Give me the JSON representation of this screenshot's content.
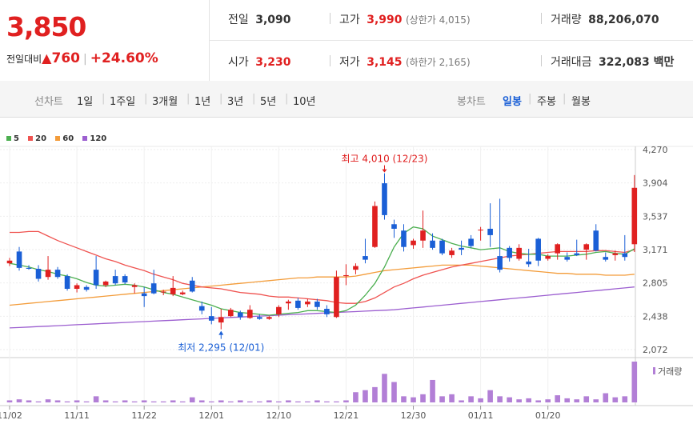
{
  "summary": {
    "price": "3,850",
    "change_label": "전일대비",
    "change_arrow": "▲",
    "change_amount": "760",
    "change_pct": "+24.60%"
  },
  "stats": {
    "prev_close_label": "전일",
    "prev_close": "3,090",
    "high_label": "고가",
    "high": "3,990",
    "upper_limit": "(상한가 4,015)",
    "volume_label": "거래량",
    "volume": "88,206,070",
    "open_label": "시가",
    "open": "3,230",
    "low_label": "저가",
    "low": "3,145",
    "lower_limit": "(하한가 2,165)",
    "trade_value_label": "거래대금",
    "trade_value": "322,083 백만"
  },
  "period_bar": {
    "line_chart_label": "선차트",
    "ranges": [
      "1일",
      "1주일",
      "3개월",
      "1년",
      "3년",
      "5년",
      "10년"
    ],
    "candle_label": "봉차트",
    "candle_options": [
      "일봉",
      "주봉",
      "월봉"
    ],
    "candle_selected": "일봉"
  },
  "colors": {
    "up": "#e02020",
    "down": "#1a5fd6",
    "ma5": "#4caf50",
    "ma20": "#ef5350",
    "ma60": "#f39c3a",
    "ma120": "#9c5fd0"
  },
  "chart_data": {
    "type": "candlestick",
    "legend": [
      {
        "name": "5",
        "color": "#4caf50"
      },
      {
        "name": "20",
        "color": "#ef5350"
      },
      {
        "name": "60",
        "color": "#f39c3a"
      },
      {
        "name": "120",
        "color": "#9c5fd0"
      }
    ],
    "y_ticks": [
      "4,270",
      "3,904",
      "3,537",
      "3,171",
      "2,805",
      "2,438",
      "2,072"
    ],
    "ylim": [
      2072,
      4270
    ],
    "x_ticks": [
      {
        "label": "11/02",
        "index": 0
      },
      {
        "label": "11/11",
        "index": 7
      },
      {
        "label": "11/22",
        "index": 14
      },
      {
        "label": "12/01",
        "index": 21
      },
      {
        "label": "12/10",
        "index": 28
      },
      {
        "label": "12/21",
        "index": 35
      },
      {
        "label": "12/30",
        "index": 42
      },
      {
        "label": "01/11",
        "index": 49
      },
      {
        "label": "01/20",
        "index": 56
      }
    ],
    "candles": [
      {
        "o": 3020,
        "h": 3080,
        "l": 2990,
        "c": 3050
      },
      {
        "o": 3150,
        "h": 3200,
        "l": 2940,
        "c": 2970
      },
      {
        "o": 2970,
        "h": 3000,
        "l": 2950,
        "c": 2960
      },
      {
        "o": 2960,
        "h": 3000,
        "l": 2820,
        "c": 2850
      },
      {
        "o": 2870,
        "h": 3100,
        "l": 2840,
        "c": 2950
      },
      {
        "o": 2950,
        "h": 2980,
        "l": 2850,
        "c": 2870
      },
      {
        "o": 2880,
        "h": 2900,
        "l": 2720,
        "c": 2740
      },
      {
        "o": 2740,
        "h": 2800,
        "l": 2700,
        "c": 2780
      },
      {
        "o": 2760,
        "h": 2780,
        "l": 2710,
        "c": 2730
      },
      {
        "o": 2950,
        "h": 3100,
        "l": 2740,
        "c": 2780
      },
      {
        "o": 2780,
        "h": 2830,
        "l": 2760,
        "c": 2820
      },
      {
        "o": 2880,
        "h": 2950,
        "l": 2780,
        "c": 2800
      },
      {
        "o": 2880,
        "h": 2900,
        "l": 2790,
        "c": 2810
      },
      {
        "o": 2760,
        "h": 2800,
        "l": 2690,
        "c": 2780
      },
      {
        "o": 2690,
        "h": 2760,
        "l": 2540,
        "c": 2660
      },
      {
        "o": 2800,
        "h": 2950,
        "l": 2680,
        "c": 2690
      },
      {
        "o": 2700,
        "h": 2730,
        "l": 2670,
        "c": 2710
      },
      {
        "o": 2680,
        "h": 2880,
        "l": 2660,
        "c": 2750
      },
      {
        "o": 2680,
        "h": 2720,
        "l": 2670,
        "c": 2700
      },
      {
        "o": 2830,
        "h": 2870,
        "l": 2700,
        "c": 2710
      },
      {
        "o": 2550,
        "h": 2600,
        "l": 2460,
        "c": 2500
      },
      {
        "o": 2440,
        "h": 2540,
        "l": 2350,
        "c": 2390
      },
      {
        "o": 2370,
        "h": 2520,
        "l": 2295,
        "c": 2430
      },
      {
        "o": 2440,
        "h": 2530,
        "l": 2430,
        "c": 2510
      },
      {
        "o": 2480,
        "h": 2500,
        "l": 2400,
        "c": 2430
      },
      {
        "o": 2420,
        "h": 2560,
        "l": 2410,
        "c": 2510
      },
      {
        "o": 2430,
        "h": 2460,
        "l": 2400,
        "c": 2410
      },
      {
        "o": 2410,
        "h": 2440,
        "l": 2400,
        "c": 2430
      },
      {
        "o": 2460,
        "h": 2560,
        "l": 2430,
        "c": 2540
      },
      {
        "o": 2580,
        "h": 2620,
        "l": 2510,
        "c": 2600
      },
      {
        "o": 2610,
        "h": 2640,
        "l": 2510,
        "c": 2530
      },
      {
        "o": 2570,
        "h": 2630,
        "l": 2540,
        "c": 2600
      },
      {
        "o": 2600,
        "h": 2630,
        "l": 2510,
        "c": 2540
      },
      {
        "o": 2520,
        "h": 2560,
        "l": 2430,
        "c": 2460
      },
      {
        "o": 2430,
        "h": 2940,
        "l": 2420,
        "c": 2870
      },
      {
        "o": 2880,
        "h": 3010,
        "l": 2780,
        "c": 2890
      },
      {
        "o": 2950,
        "h": 3020,
        "l": 2900,
        "c": 2990
      },
      {
        "o": 3100,
        "h": 3290,
        "l": 3020,
        "c": 3060
      },
      {
        "o": 3200,
        "h": 3700,
        "l": 3190,
        "c": 3650
      },
      {
        "o": 3900,
        "h": 4010,
        "l": 3500,
        "c": 3550
      },
      {
        "o": 3450,
        "h": 3500,
        "l": 3300,
        "c": 3400
      },
      {
        "o": 3380,
        "h": 3450,
        "l": 3150,
        "c": 3200
      },
      {
        "o": 3220,
        "h": 3290,
        "l": 3180,
        "c": 3270
      },
      {
        "o": 3270,
        "h": 3600,
        "l": 3190,
        "c": 3380
      },
      {
        "o": 3270,
        "h": 3350,
        "l": 3170,
        "c": 3190
      },
      {
        "o": 3270,
        "h": 3290,
        "l": 3110,
        "c": 3130
      },
      {
        "o": 3110,
        "h": 3190,
        "l": 3080,
        "c": 3160
      },
      {
        "o": 3190,
        "h": 3270,
        "l": 3110,
        "c": 3170
      },
      {
        "o": 3290,
        "h": 3330,
        "l": 3190,
        "c": 3210
      },
      {
        "o": 3390,
        "h": 3420,
        "l": 3270,
        "c": 3390
      },
      {
        "o": 3400,
        "h": 3680,
        "l": 3200,
        "c": 3330
      },
      {
        "o": 3100,
        "h": 3730,
        "l": 2920,
        "c": 2950
      },
      {
        "o": 3190,
        "h": 3210,
        "l": 3040,
        "c": 3080
      },
      {
        "o": 3070,
        "h": 3230,
        "l": 3050,
        "c": 3190
      },
      {
        "o": 3040,
        "h": 3180,
        "l": 2980,
        "c": 3010
      },
      {
        "o": 3290,
        "h": 3300,
        "l": 2990,
        "c": 3050
      },
      {
        "o": 3070,
        "h": 3120,
        "l": 3050,
        "c": 3100
      },
      {
        "o": 3130,
        "h": 3240,
        "l": 3060,
        "c": 3230
      },
      {
        "o": 3090,
        "h": 3140,
        "l": 3040,
        "c": 3060
      },
      {
        "o": 3130,
        "h": 3280,
        "l": 3100,
        "c": 3110
      },
      {
        "o": 3170,
        "h": 3240,
        "l": 3060,
        "c": 3230
      },
      {
        "o": 3380,
        "h": 3450,
        "l": 3150,
        "c": 3160
      },
      {
        "o": 3090,
        "h": 3140,
        "l": 3040,
        "c": 3060
      },
      {
        "o": 3110,
        "h": 3160,
        "l": 3050,
        "c": 3130
      },
      {
        "o": 3130,
        "h": 3330,
        "l": 3050,
        "c": 3090
      },
      {
        "o": 3230,
        "h": 3990,
        "l": 3145,
        "c": 3850
      }
    ],
    "ma5": [
      3020,
      3000,
      2980,
      2950,
      2930,
      2900,
      2880,
      2850,
      2810,
      2780,
      2770,
      2780,
      2790,
      2780,
      2760,
      2730,
      2700,
      2680,
      2650,
      2620,
      2590,
      2560,
      2520,
      2500,
      2480,
      2470,
      2460,
      2450,
      2460,
      2470,
      2480,
      2500,
      2500,
      2490,
      2480,
      2500,
      2560,
      2670,
      2800,
      2980,
      3200,
      3350,
      3420,
      3400,
      3320,
      3280,
      3240,
      3210,
      3190,
      3170,
      3180,
      3190,
      3150,
      3130,
      3120,
      3120,
      3100,
      3100,
      3100,
      3110,
      3120,
      3140,
      3150,
      3130,
      3120,
      3180
    ],
    "ma20": [
      3360,
      3360,
      3370,
      3370,
      3320,
      3270,
      3230,
      3190,
      3150,
      3110,
      3070,
      3040,
      3000,
      2970,
      2940,
      2900,
      2870,
      2840,
      2800,
      2780,
      2760,
      2750,
      2740,
      2720,
      2700,
      2690,
      2680,
      2660,
      2650,
      2650,
      2640,
      2630,
      2620,
      2610,
      2590,
      2580,
      2580,
      2600,
      2640,
      2700,
      2760,
      2800,
      2850,
      2890,
      2920,
      2950,
      2980,
      3000,
      3020,
      3040,
      3060,
      3080,
      3100,
      3110,
      3120,
      3130,
      3140,
      3150,
      3150,
      3150,
      3150,
      3160,
      3160,
      3150,
      3140,
      3170
    ],
    "ma60": [
      2560,
      2570,
      2580,
      2590,
      2600,
      2610,
      2620,
      2630,
      2640,
      2650,
      2660,
      2670,
      2680,
      2690,
      2700,
      2710,
      2720,
      2730,
      2740,
      2750,
      2760,
      2770,
      2780,
      2790,
      2800,
      2810,
      2820,
      2830,
      2840,
      2850,
      2860,
      2860,
      2870,
      2870,
      2870,
      2870,
      2880,
      2900,
      2920,
      2940,
      2950,
      2960,
      2970,
      2980,
      2990,
      3000,
      3000,
      3000,
      3000,
      2990,
      2980,
      2970,
      2960,
      2950,
      2940,
      2930,
      2920,
      2910,
      2910,
      2900,
      2900,
      2900,
      2890,
      2890,
      2890,
      2900
    ],
    "ma120": [
      2310,
      2315,
      2320,
      2325,
      2330,
      2335,
      2340,
      2345,
      2350,
      2355,
      2360,
      2365,
      2370,
      2375,
      2380,
      2385,
      2390,
      2395,
      2400,
      2405,
      2410,
      2415,
      2420,
      2425,
      2430,
      2435,
      2440,
      2445,
      2450,
      2455,
      2460,
      2465,
      2470,
      2475,
      2480,
      2485,
      2490,
      2495,
      2500,
      2505,
      2510,
      2520,
      2530,
      2540,
      2550,
      2560,
      2570,
      2580,
      2590,
      2600,
      2610,
      2620,
      2630,
      2640,
      2650,
      2660,
      2670,
      2680,
      2690,
      2700,
      2710,
      2720,
      2730,
      2740,
      2750,
      2760
    ],
    "volume": [
      2,
      3,
      2,
      1,
      3,
      2,
      1,
      2,
      1,
      6,
      2,
      1,
      2,
      1,
      2,
      1,
      1,
      2,
      1,
      5,
      2,
      1,
      2,
      1,
      2,
      1,
      1,
      2,
      1,
      2,
      1,
      1,
      2,
      1,
      1,
      2,
      10,
      12,
      15,
      28,
      20,
      6,
      5,
      8,
      22,
      6,
      8,
      2,
      6,
      4,
      12,
      6,
      5,
      3,
      4,
      2,
      3,
      7,
      4,
      3,
      6,
      3,
      9,
      5,
      6,
      40
    ],
    "volume_label": "거래량",
    "annotations": {
      "high": {
        "text": "최고 4,010 (12/23)",
        "index": 39,
        "value": 4010
      },
      "low": {
        "text": "최저 2,295 (12/01)",
        "index": 22,
        "value": 2295
      }
    }
  }
}
